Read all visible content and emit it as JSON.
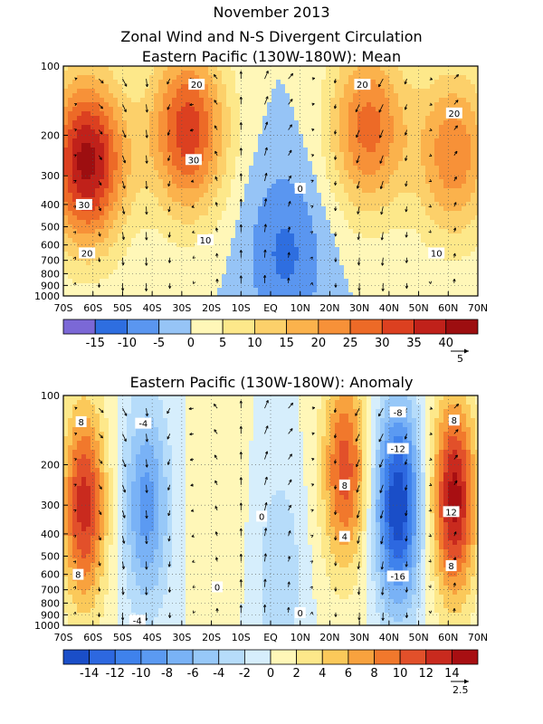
{
  "title": "November 2013",
  "subtitle": "Zonal Wind and N-S Divergent Circulation",
  "chart_data": [
    {
      "type": "heatmap",
      "title": "Eastern Pacific (130W-180W): Mean",
      "x_tick_labels": [
        "70S",
        "60S",
        "50S",
        "40S",
        "30S",
        "20S",
        "10S",
        "EQ",
        "10N",
        "20N",
        "30N",
        "40N",
        "50N",
        "60N",
        "70N"
      ],
      "x": [
        -70,
        -60,
        -50,
        -40,
        -30,
        -20,
        -10,
        0,
        10,
        20,
        30,
        40,
        50,
        60,
        70
      ],
      "y_tick_labels": [
        "100",
        "200",
        "300",
        "400",
        "500",
        "600",
        "700",
        "800",
        "900",
        "1000"
      ],
      "y": [
        100,
        200,
        300,
        400,
        500,
        600,
        700,
        800,
        900,
        1000
      ],
      "y_scale": "log",
      "ylim": [
        1000,
        100
      ],
      "grid": true,
      "contour_labels": [
        {
          "value": "20",
          "x": -62,
          "p": 650
        },
        {
          "value": "30",
          "x": -63,
          "p": 400
        },
        {
          "value": "20",
          "x": -25,
          "p": 120
        },
        {
          "value": "30",
          "x": -26,
          "p": 255
        },
        {
          "value": "10",
          "x": -22,
          "p": 570
        },
        {
          "value": "0",
          "x": 10,
          "p": 340
        },
        {
          "value": "20",
          "x": 31,
          "p": 120
        },
        {
          "value": "20",
          "x": 62,
          "p": 160
        },
        {
          "value": "10",
          "x": 56,
          "p": 650
        }
      ],
      "colorbar": {
        "tick_labels": [
          "-15",
          "-10",
          "-5",
          "0",
          "5",
          "10",
          "15",
          "20",
          "25",
          "30",
          "35",
          "40"
        ],
        "levels": [
          -20,
          -15,
          -10,
          -5,
          0,
          5,
          10,
          15,
          20,
          25,
          30,
          35,
          40,
          45
        ],
        "colors": [
          "#7b68d6",
          "#2e6ee0",
          "#5a96f0",
          "#96c4f6",
          "#fff7b8",
          "#fde88a",
          "#fcd06a",
          "#fbb24c",
          "#f79138",
          "#ed6a27",
          "#dc4020",
          "#c0211a",
          "#9d0e10"
        ]
      },
      "vector_reference": "5",
      "centers": [
        {
          "x": -62,
          "p": 260,
          "value": 42
        },
        {
          "x": -28,
          "p": 190,
          "value": 33
        },
        {
          "x": 33,
          "p": 185,
          "value": 27
        },
        {
          "x": 62,
          "p": 240,
          "value": 24
        },
        {
          "x": 5,
          "p": 650,
          "value": -11
        }
      ]
    },
    {
      "type": "heatmap",
      "title": "Eastern Pacific (130W-180W): Anomaly",
      "x_tick_labels": [
        "70S",
        "60S",
        "50S",
        "40S",
        "30S",
        "20S",
        "10S",
        "EQ",
        "10N",
        "20N",
        "30N",
        "40N",
        "50N",
        "60N",
        "70N"
      ],
      "x": [
        -70,
        -60,
        -50,
        -40,
        -30,
        -20,
        -10,
        0,
        10,
        20,
        30,
        40,
        50,
        60,
        70
      ],
      "y_tick_labels": [
        "100",
        "200",
        "300",
        "400",
        "500",
        "600",
        "700",
        "800",
        "900",
        "1000"
      ],
      "y": [
        100,
        200,
        300,
        400,
        500,
        600,
        700,
        800,
        900,
        1000
      ],
      "y_scale": "log",
      "ylim": [
        1000,
        100
      ],
      "grid": true,
      "contour_labels": [
        {
          "value": "8",
          "x": -64,
          "p": 130
        },
        {
          "value": "8",
          "x": -65,
          "p": 600
        },
        {
          "value": "-4",
          "x": -43,
          "p": 132
        },
        {
          "value": "-4",
          "x": -45,
          "p": 950
        },
        {
          "value": "0",
          "x": -3,
          "p": 335
        },
        {
          "value": "0",
          "x": -18,
          "p": 680
        },
        {
          "value": "0",
          "x": 10,
          "p": 880
        },
        {
          "value": "8",
          "x": 25,
          "p": 245
        },
        {
          "value": "4",
          "x": 25,
          "p": 410
        },
        {
          "value": "-8",
          "x": 43,
          "p": 118
        },
        {
          "value": "-12",
          "x": 43,
          "p": 170
        },
        {
          "value": "-16",
          "x": 43,
          "p": 610
        },
        {
          "value": "8",
          "x": 62,
          "p": 128
        },
        {
          "value": "12",
          "x": 61,
          "p": 320
        },
        {
          "value": "8",
          "x": 61,
          "p": 550
        }
      ],
      "colorbar": {
        "tick_labels": [
          "-14",
          "-12",
          "-10",
          "-8",
          "-6",
          "-4",
          "-2",
          "0",
          "2",
          "4",
          "6",
          "8",
          "10",
          "12",
          "14"
        ],
        "levels": [
          -16,
          -14,
          -12,
          -10,
          -8,
          -6,
          -4,
          -2,
          0,
          2,
          4,
          6,
          8,
          10,
          12,
          14,
          16
        ],
        "colors": [
          "#1a4ec8",
          "#2d68e0",
          "#3f82ec",
          "#5b9af2",
          "#79b2f6",
          "#97c8f8",
          "#b6dcfa",
          "#d6eefc",
          "#fff7b8",
          "#fde88a",
          "#fbc95a",
          "#f8a23e",
          "#f1782c",
          "#e2502a",
          "#c92a1e",
          "#a80f12"
        ]
      },
      "vector_reference": "2.5",
      "centers": [
        {
          "x": -63,
          "p": 300,
          "value": 13
        },
        {
          "x": -42,
          "p": 300,
          "value": -9
        },
        {
          "x": -18,
          "p": 300,
          "value": 2
        },
        {
          "x": 3,
          "p": 600,
          "value": -4
        },
        {
          "x": 25,
          "p": 210,
          "value": 11
        },
        {
          "x": 43,
          "p": 300,
          "value": -16
        },
        {
          "x": 62,
          "p": 280,
          "value": 15
        }
      ]
    }
  ]
}
